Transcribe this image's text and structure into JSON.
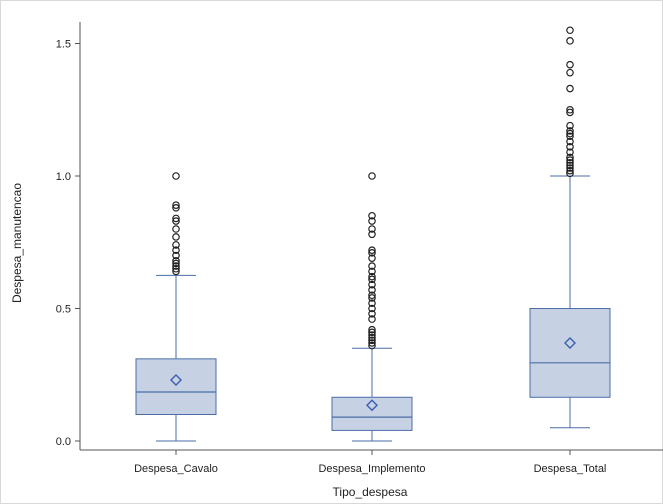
{
  "chart_data": {
    "type": "boxplot",
    "xlabel": "Tipo_despesa",
    "ylabel": "Despesa_manutencao",
    "ylim": [
      0,
      1.56
    ],
    "yticks": [
      0.0,
      0.5,
      1.0,
      1.5
    ],
    "ytick_labels": [
      "0.0",
      "0.5",
      "1.0",
      "1.5"
    ],
    "grid": false,
    "legend": "none",
    "categories": [
      "Despesa_Cavalo",
      "Despesa_Implemento",
      "Despesa_Total"
    ],
    "boxes": [
      {
        "category": "Despesa_Cavalo",
        "whisker_low": 0.0,
        "q1": 0.1,
        "median": 0.185,
        "q3": 0.31,
        "whisker_high": 0.625,
        "mean": 0.23,
        "outliers": [
          0.64,
          0.65,
          0.66,
          0.67,
          0.68,
          0.7,
          0.72,
          0.74,
          0.77,
          0.8,
          0.83,
          0.84,
          0.88,
          0.89,
          1.0
        ]
      },
      {
        "category": "Despesa_Implemento",
        "whisker_low": 0.0,
        "q1": 0.04,
        "median": 0.09,
        "q3": 0.165,
        "whisker_high": 0.35,
        "mean": 0.135,
        "outliers": [
          0.36,
          0.37,
          0.38,
          0.39,
          0.4,
          0.41,
          0.42,
          0.46,
          0.48,
          0.5,
          0.52,
          0.54,
          0.55,
          0.57,
          0.59,
          0.61,
          0.62,
          0.64,
          0.66,
          0.69,
          0.71,
          0.72,
          0.78,
          0.8,
          0.83,
          0.85,
          1.0
        ]
      },
      {
        "category": "Despesa_Total",
        "whisker_low": 0.05,
        "q1": 0.165,
        "median": 0.295,
        "q3": 0.5,
        "whisker_high": 1.0,
        "mean": 0.37,
        "outliers": [
          1.01,
          1.02,
          1.03,
          1.04,
          1.05,
          1.06,
          1.07,
          1.09,
          1.11,
          1.13,
          1.15,
          1.16,
          1.17,
          1.19,
          1.24,
          1.25,
          1.33,
          1.39,
          1.42,
          1.51,
          1.55
        ]
      }
    ],
    "colors": {
      "box_fill": "#c6d1e4",
      "line": "#4a6da8",
      "mean_marker": "#3a5fb0",
      "outlier": "#222222",
      "axis": "#555555"
    }
  }
}
